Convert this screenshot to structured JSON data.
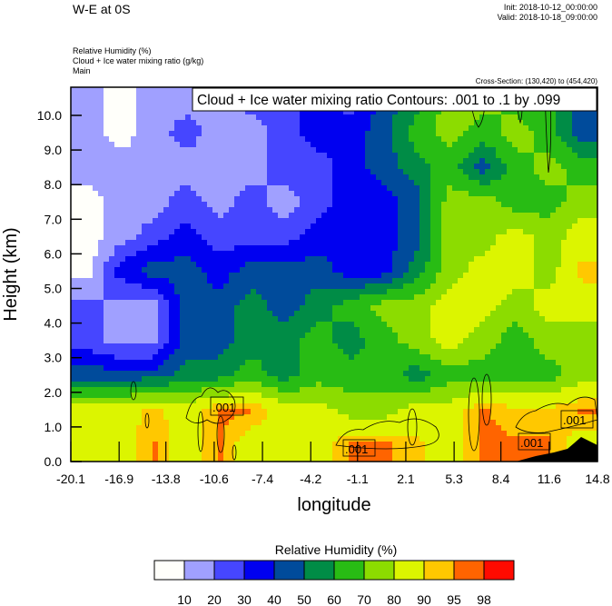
{
  "header": {
    "title": "W-E at 0S",
    "init": "Init: 2018-10-12_00:00:00",
    "valid": "Valid: 2018-10-18_09:00:00",
    "field_1": "Relative Humidity   (%)",
    "field_2": "Cloud + Ice water mixing ratio   (g/kg)",
    "field_3": "Main",
    "cross_section": "Cross-Section: (130,420) to (454,420)"
  },
  "chart_data": {
    "type": "heatmap",
    "title": "Cloud + Ice water mixing ratio Contours: .001 to .1 by .099",
    "xlabel": "longitude",
    "ylabel": "Height (km)",
    "xlim": [
      -20.1,
      14.8
    ],
    "ylim": [
      0,
      10.8
    ],
    "x_ticks": [
      "-20.1",
      "-16.9",
      "-13.8",
      "-10.6",
      "-7.4",
      "-4.2",
      "-1.1",
      "2.1",
      "5.3",
      "8.4",
      "11.6",
      "14.8"
    ],
    "x_tick_values": [
      -20.1,
      -16.9,
      -13.8,
      -10.6,
      -7.4,
      -4.2,
      -1.1,
      2.1,
      5.3,
      8.4,
      11.6,
      14.8
    ],
    "y_ticks": [
      "0.0",
      "1.0",
      "2.0",
      "3.0",
      "4.0",
      "5.0",
      "6.0",
      "7.0",
      "8.0",
      "9.0",
      "10.0"
    ],
    "y_tick_values": [
      0,
      1,
      2,
      3,
      4,
      5,
      6,
      7,
      8,
      9,
      10
    ],
    "rh_grid_note": "approximate relative humidity (%) sampled on 16 longitude bins x 11 height bins (rows listed from bottom 0-1 km upward)",
    "rh_grid": [
      [
        85,
        85,
        96,
        85,
        96,
        85,
        85,
        85,
        96,
        96,
        92,
        85,
        96,
        96,
        96,
        85
      ],
      [
        85,
        85,
        92,
        85,
        96,
        96,
        85,
        85,
        75,
        75,
        85,
        85,
        96,
        92,
        92,
        96
      ],
      [
        45,
        45,
        45,
        55,
        55,
        65,
        55,
        65,
        65,
        65,
        55,
        65,
        65,
        65,
        65,
        75
      ],
      [
        25,
        15,
        15,
        45,
        45,
        55,
        55,
        65,
        55,
        65,
        75,
        85,
        75,
        65,
        75,
        75
      ],
      [
        25,
        15,
        15,
        45,
        45,
        55,
        45,
        55,
        65,
        75,
        75,
        85,
        85,
        75,
        85,
        85
      ],
      [
        5,
        35,
        45,
        45,
        35,
        45,
        45,
        45,
        35,
        35,
        55,
        75,
        85,
        85,
        75,
        92
      ],
      [
        5,
        15,
        25,
        35,
        25,
        25,
        25,
        35,
        35,
        35,
        45,
        75,
        75,
        85,
        75,
        85
      ],
      [
        5,
        15,
        15,
        25,
        15,
        25,
        15,
        25,
        35,
        35,
        45,
        75,
        75,
        65,
        65,
        75
      ],
      [
        15,
        15,
        15,
        15,
        15,
        15,
        25,
        25,
        35,
        45,
        55,
        65,
        45,
        65,
        75,
        65
      ],
      [
        15,
        5,
        15,
        25,
        15,
        15,
        25,
        35,
        35,
        45,
        65,
        75,
        65,
        75,
        65,
        45
      ],
      [
        15,
        5,
        15,
        15,
        15,
        25,
        25,
        35,
        25,
        45,
        55,
        75,
        75,
        65,
        65,
        45
      ]
    ],
    "contour_field": "Cloud + Ice water mixing ratio (g/kg)",
    "contour_levels": [
      0.001,
      0.1
    ],
    "contour_labels": [
      ".001",
      ".001",
      ".001",
      ".001"
    ],
    "legend": {
      "title": "Relative Humidity  (%)",
      "placement": "bottom",
      "levels": [
        "10",
        "20",
        "30",
        "40",
        "50",
        "60",
        "70",
        "80",
        "90",
        "95",
        "98"
      ],
      "level_values": [
        10,
        20,
        30,
        40,
        50,
        60,
        70,
        80,
        90,
        95,
        98
      ],
      "colors": [
        "#fffffa",
        "#a0a0ff",
        "#4646ff",
        "#0000f0",
        "#004b9b",
        "#008c46",
        "#28bc14",
        "#8cdc00",
        "#dcf500",
        "#ffc800",
        "#ff6400",
        "#ff0a00"
      ]
    }
  }
}
